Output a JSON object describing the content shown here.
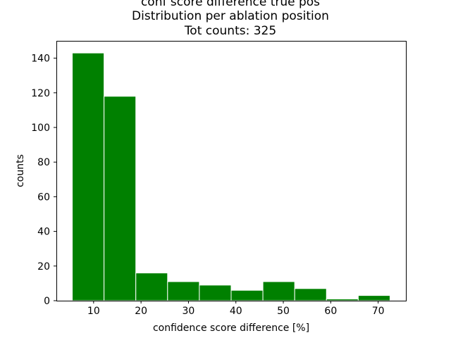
{
  "chart_data": {
    "type": "bar",
    "title_lines": [
      "conf score difference true pos",
      "Distribution per ablation position",
      "Tot counts: 325"
    ],
    "xlabel": "confidence score difference [%]",
    "ylabel": "counts",
    "bin_edges": [
      5.5,
      12.2,
      18.9,
      25.6,
      32.3,
      39.0,
      45.7,
      52.4,
      59.1,
      65.8,
      72.5
    ],
    "values": [
      143,
      118,
      16,
      11,
      9,
      6,
      11,
      7,
      1,
      3
    ],
    "xlim": [
      2.15,
      75.85
    ],
    "ylim": [
      0,
      150
    ],
    "xticks": [
      10,
      20,
      30,
      40,
      50,
      60,
      70
    ],
    "yticks": [
      0,
      20,
      40,
      60,
      80,
      100,
      120,
      140
    ],
    "bar_color": "#008000",
    "edge_color": "#ffffff",
    "grid": false
  }
}
